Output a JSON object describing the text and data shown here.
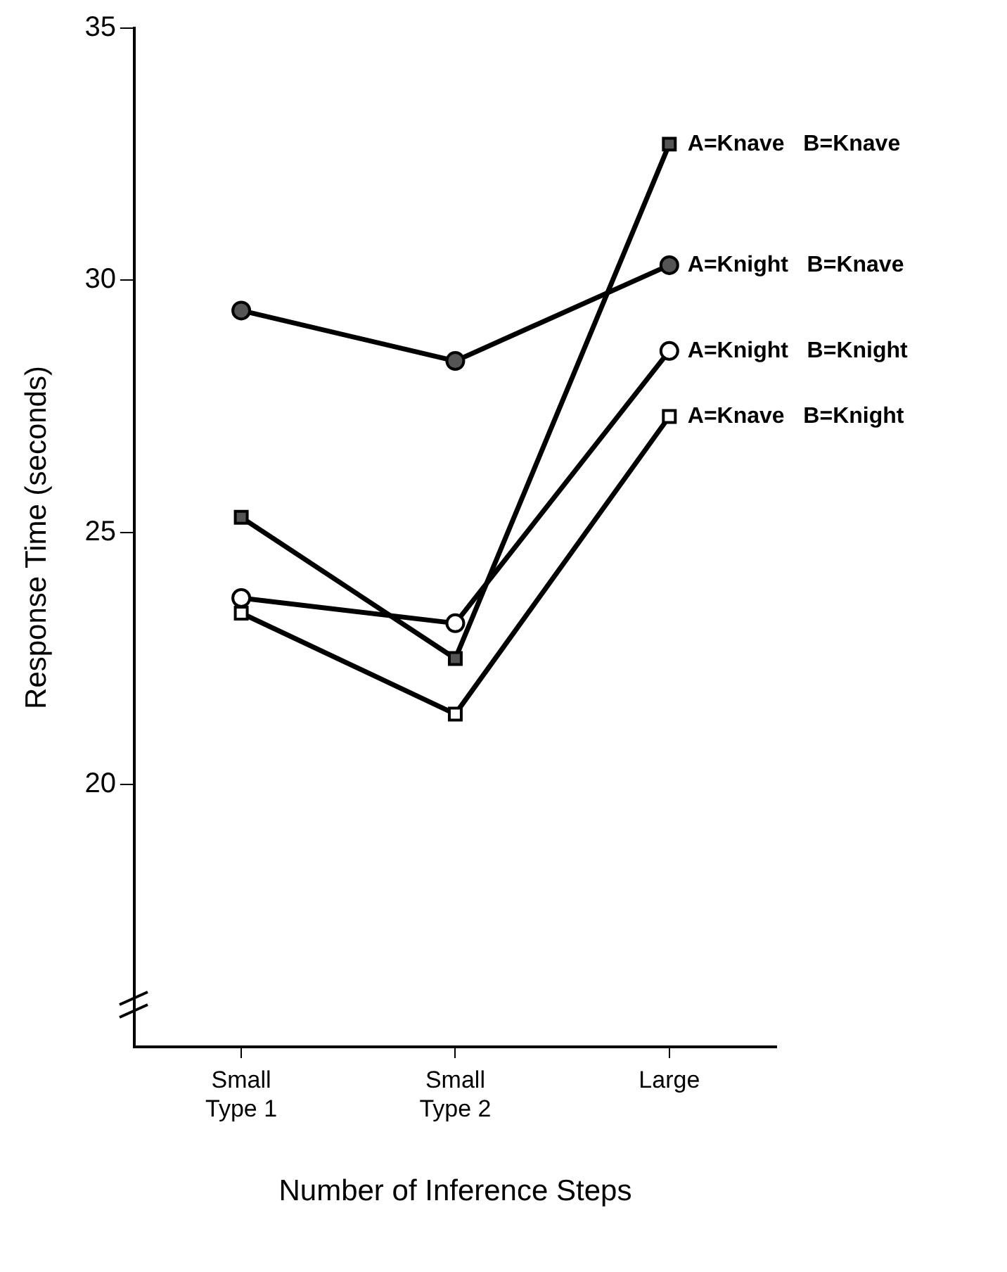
{
  "chart_data": {
    "type": "line",
    "xlabel": "Number of Inference Steps",
    "ylabel": "Response Time (seconds)",
    "categories": [
      "Small Type 1",
      "Small Type 2",
      "Large"
    ],
    "ylim": [
      14.8,
      35
    ],
    "yticks": [
      20,
      25,
      30,
      35
    ],
    "grid": false,
    "legend": false,
    "line_style": "solid",
    "series": [
      {
        "name": "A=Knave   B=Knave",
        "color": "#555555",
        "marker": "square",
        "values": [
          25.3,
          22.5,
          32.7
        ]
      },
      {
        "name": "A=Knight   B=Knave",
        "color": "#555555",
        "marker": "circle",
        "values": [
          29.4,
          28.4,
          30.3
        ]
      },
      {
        "name": "A=Knight   B=Knight",
        "color": "#ffffff",
        "marker": "circle",
        "values": [
          23.7,
          23.2,
          28.6
        ]
      },
      {
        "name": "A=Knave   B=Knight",
        "color": "#ffffff",
        "marker": "square",
        "values": [
          23.4,
          21.4,
          27.3
        ]
      }
    ]
  }
}
